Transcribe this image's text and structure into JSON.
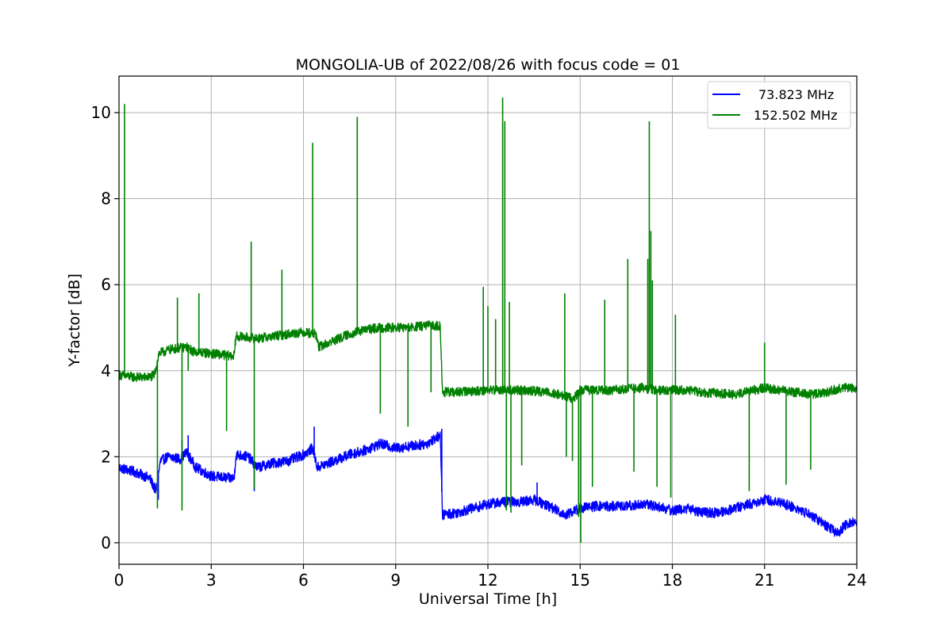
{
  "chart_data": {
    "type": "line",
    "title": "MONGOLIA-UB of 2022/08/26 with focus code = 01",
    "xlabel": "Universal Time [h]",
    "ylabel": "Y-factor [dB]",
    "xlim": [
      0,
      24
    ],
    "ylim": [
      -0.5,
      10.85
    ],
    "xticks": [
      0,
      3,
      6,
      9,
      12,
      15,
      18,
      21,
      24
    ],
    "xtick_labels": [
      "0",
      "3",
      "6",
      "9",
      "12",
      "15",
      "18",
      "21",
      "24"
    ],
    "yticks": [
      0,
      2,
      4,
      6,
      8,
      10
    ],
    "ytick_labels": [
      "0",
      "2",
      "4",
      "6",
      "8",
      "10"
    ],
    "grid": true,
    "legend_position": "top-right",
    "series": [
      {
        "name": "73.823 MHz",
        "color": "#0000ff",
        "baseline": [
          [
            0,
            1.75
          ],
          [
            0.5,
            1.65
          ],
          [
            1.0,
            1.5
          ],
          [
            1.2,
            1.2
          ],
          [
            1.35,
            1.9
          ],
          [
            1.6,
            2.0
          ],
          [
            2.0,
            1.95
          ],
          [
            2.2,
            2.1
          ],
          [
            2.5,
            1.75
          ],
          [
            3.0,
            1.55
          ],
          [
            3.6,
            1.5
          ],
          [
            3.75,
            1.5
          ],
          [
            3.8,
            2.05
          ],
          [
            4.2,
            2.0
          ],
          [
            4.5,
            1.75
          ],
          [
            5.0,
            1.85
          ],
          [
            5.5,
            1.9
          ],
          [
            6.0,
            2.05
          ],
          [
            6.3,
            2.2
          ],
          [
            6.45,
            1.75
          ],
          [
            7.0,
            1.9
          ],
          [
            7.5,
            2.05
          ],
          [
            8.0,
            2.15
          ],
          [
            8.5,
            2.3
          ],
          [
            9.0,
            2.2
          ],
          [
            9.5,
            2.25
          ],
          [
            10.0,
            2.3
          ],
          [
            10.45,
            2.5
          ],
          [
            10.52,
            0.65
          ],
          [
            11.0,
            0.7
          ],
          [
            11.5,
            0.8
          ],
          [
            12.0,
            0.9
          ],
          [
            12.5,
            0.95
          ],
          [
            13.0,
            0.95
          ],
          [
            13.5,
            1.0
          ],
          [
            14.0,
            0.85
          ],
          [
            14.5,
            0.65
          ],
          [
            15.0,
            0.8
          ],
          [
            15.5,
            0.85
          ],
          [
            16.0,
            0.85
          ],
          [
            16.5,
            0.85
          ],
          [
            17.0,
            0.9
          ],
          [
            17.5,
            0.85
          ],
          [
            18.0,
            0.75
          ],
          [
            18.5,
            0.8
          ],
          [
            19.0,
            0.7
          ],
          [
            19.5,
            0.7
          ],
          [
            20.0,
            0.8
          ],
          [
            20.5,
            0.9
          ],
          [
            21.0,
            1.0
          ],
          [
            21.5,
            0.95
          ],
          [
            22.0,
            0.8
          ],
          [
            22.5,
            0.65
          ],
          [
            23.0,
            0.4
          ],
          [
            23.4,
            0.2
          ],
          [
            23.6,
            0.4
          ],
          [
            24.0,
            0.5
          ]
        ],
        "noise": 0.12,
        "spikes": [
          [
            1.28,
            1.0
          ],
          [
            2.05,
            2.4
          ],
          [
            2.25,
            2.5
          ],
          [
            4.4,
            1.2
          ],
          [
            6.35,
            2.7
          ],
          [
            10.5,
            2.65
          ],
          [
            13.6,
            1.4
          ]
        ]
      },
      {
        "name": "152.502 MHz",
        "color": "#008000",
        "baseline": [
          [
            0,
            3.9
          ],
          [
            0.5,
            3.85
          ],
          [
            1.0,
            3.85
          ],
          [
            1.15,
            3.9
          ],
          [
            1.3,
            4.4
          ],
          [
            1.7,
            4.5
          ],
          [
            2.2,
            4.55
          ],
          [
            2.4,
            4.45
          ],
          [
            3.0,
            4.4
          ],
          [
            3.6,
            4.35
          ],
          [
            3.75,
            4.35
          ],
          [
            3.8,
            4.8
          ],
          [
            4.5,
            4.75
          ],
          [
            5.0,
            4.8
          ],
          [
            5.5,
            4.85
          ],
          [
            6.0,
            4.9
          ],
          [
            6.4,
            4.85
          ],
          [
            6.5,
            4.55
          ],
          [
            7.0,
            4.7
          ],
          [
            7.5,
            4.85
          ],
          [
            8.0,
            4.95
          ],
          [
            8.5,
            5.0
          ],
          [
            9.0,
            5.0
          ],
          [
            9.5,
            5.0
          ],
          [
            10.0,
            5.05
          ],
          [
            10.45,
            5.05
          ],
          [
            10.52,
            3.5
          ],
          [
            11.0,
            3.5
          ],
          [
            12.0,
            3.55
          ],
          [
            13.0,
            3.55
          ],
          [
            14.0,
            3.5
          ],
          [
            14.8,
            3.35
          ],
          [
            15.0,
            3.55
          ],
          [
            16.0,
            3.55
          ],
          [
            17.0,
            3.6
          ],
          [
            17.5,
            3.55
          ],
          [
            18.0,
            3.55
          ],
          [
            18.5,
            3.55
          ],
          [
            19.0,
            3.5
          ],
          [
            20.0,
            3.45
          ],
          [
            21.0,
            3.6
          ],
          [
            21.5,
            3.55
          ],
          [
            22.0,
            3.5
          ],
          [
            22.5,
            3.45
          ],
          [
            23.0,
            3.5
          ],
          [
            23.5,
            3.6
          ],
          [
            24.0,
            3.6
          ]
        ],
        "noise": 0.11,
        "spikes": [
          [
            0.18,
            10.2
          ],
          [
            1.25,
            0.8
          ],
          [
            1.9,
            5.7
          ],
          [
            2.05,
            0.75
          ],
          [
            2.25,
            4.0
          ],
          [
            2.6,
            5.8
          ],
          [
            3.5,
            2.6
          ],
          [
            4.3,
            7.0
          ],
          [
            4.4,
            1.25
          ],
          [
            5.3,
            6.35
          ],
          [
            6.3,
            9.3
          ],
          [
            7.75,
            9.9
          ],
          [
            8.5,
            3.0
          ],
          [
            9.4,
            2.7
          ],
          [
            10.15,
            3.5
          ],
          [
            11.85,
            5.95
          ],
          [
            12.0,
            5.5
          ],
          [
            12.25,
            5.2
          ],
          [
            12.48,
            10.35
          ],
          [
            12.55,
            9.8
          ],
          [
            12.6,
            0.75
          ],
          [
            12.7,
            5.6
          ],
          [
            12.75,
            0.7
          ],
          [
            13.1,
            1.8
          ],
          [
            14.5,
            5.8
          ],
          [
            14.55,
            2.0
          ],
          [
            14.75,
            1.9
          ],
          [
            14.95,
            0.6
          ],
          [
            15.02,
            0.0
          ],
          [
            15.4,
            1.3
          ],
          [
            15.8,
            5.65
          ],
          [
            16.55,
            6.6
          ],
          [
            16.75,
            1.65
          ],
          [
            17.2,
            6.6
          ],
          [
            17.25,
            9.8
          ],
          [
            17.35,
            6.1
          ],
          [
            17.3,
            7.25
          ],
          [
            17.5,
            1.3
          ],
          [
            17.95,
            1.05
          ],
          [
            18.1,
            5.3
          ],
          [
            20.5,
            1.2
          ],
          [
            21.0,
            4.65
          ],
          [
            21.7,
            1.35
          ],
          [
            22.5,
            1.7
          ]
        ]
      }
    ]
  }
}
